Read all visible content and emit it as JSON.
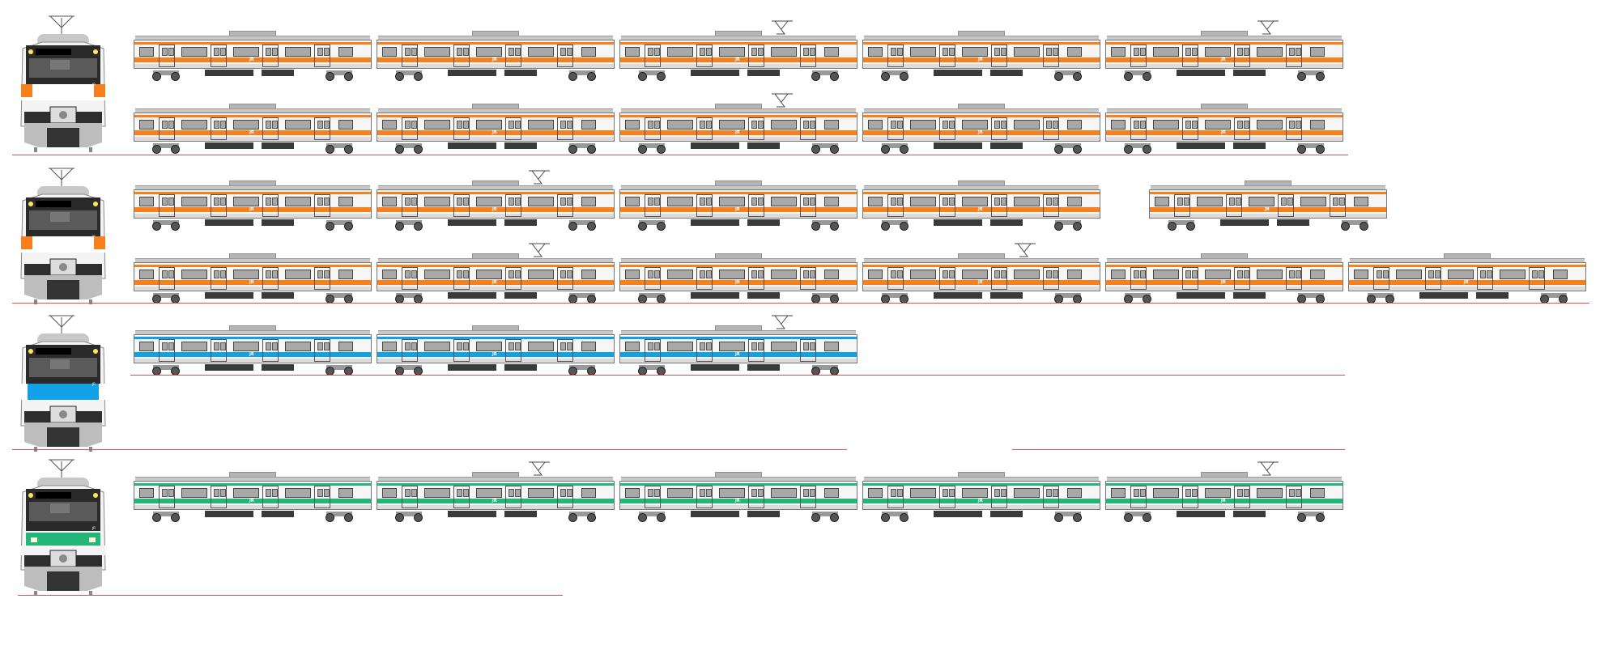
{
  "logo_text": "JR",
  "colors": {
    "body": "#f6f6f6",
    "ground_line": "#e85050"
  },
  "groups": [
    {
      "line_color": "#f7801e",
      "front_style": "orange-corners",
      "rows": [
        {
          "segments": [
            {
              "cars": [
                {
                  "panto": false
                },
                {
                  "panto": false
                },
                {
                  "panto": true
                },
                {
                  "panto": false
                },
                {
                  "panto": true
                }
              ]
            }
          ]
        },
        {
          "segments": [
            {
              "cars": [
                {
                  "panto": false
                },
                {
                  "panto": false
                },
                {
                  "panto": true
                },
                {
                  "panto": false
                },
                {
                  "panto": false
                }
              ]
            }
          ]
        }
      ]
    },
    {
      "line_color": "#f7801e",
      "front_style": "orange-corners",
      "rows": [
        {
          "segments": [
            {
              "cars": [
                {
                  "panto": false
                },
                {
                  "panto": true
                },
                {
                  "panto": false
                },
                {
                  "panto": false
                }
              ]
            },
            {
              "cars": [
                {
                  "panto": false
                }
              ]
            }
          ]
        },
        {
          "segments": [
            {
              "cars": [
                {
                  "panto": false
                },
                {
                  "panto": true
                },
                {
                  "panto": false
                },
                {
                  "panto": true
                },
                {
                  "panto": false
                },
                {
                  "panto": false
                }
              ]
            }
          ]
        }
      ]
    },
    {
      "line_color": "#12a0e6",
      "front_style": "blue-band",
      "rows": [
        {
          "segments": [
            {
              "cars": [
                {
                  "panto": false
                },
                {
                  "panto": false
                },
                {
                  "panto": true
                }
              ]
            }
          ]
        }
      ]
    },
    {
      "line_color": "#23b57a",
      "front_style": "green-band",
      "rows": [
        {
          "segments": [
            {
              "cars": [
                {
                  "panto": false
                },
                {
                  "panto": true
                },
                {
                  "panto": false
                },
                {
                  "panto": false
                },
                {
                  "panto": true
                }
              ]
            }
          ]
        }
      ]
    }
  ]
}
